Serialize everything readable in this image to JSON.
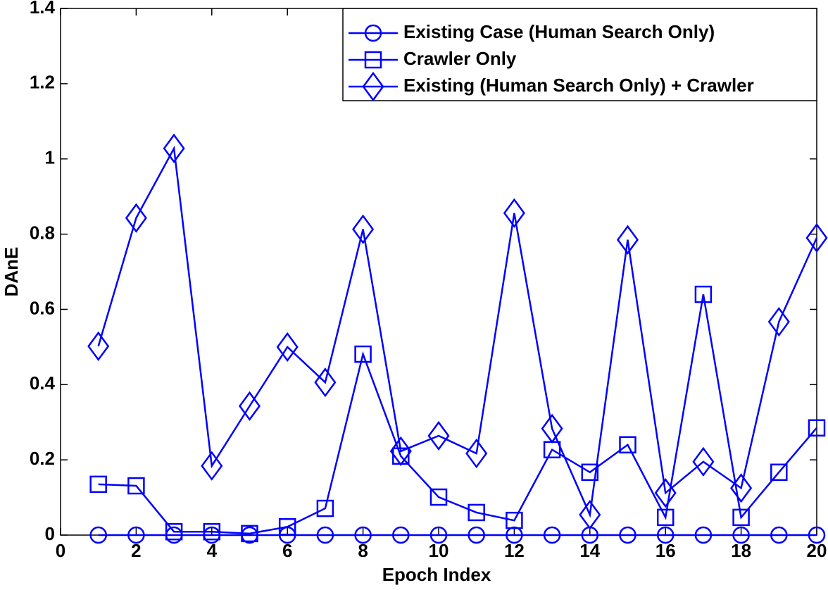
{
  "chart_data": {
    "type": "line",
    "x_label": "Epoch Index",
    "y_label": "DAnE",
    "x": [
      1,
      2,
      3,
      4,
      5,
      6,
      7,
      8,
      9,
      10,
      11,
      12,
      13,
      14,
      15,
      16,
      17,
      18,
      19,
      20
    ],
    "series": [
      {
        "name": "Existing Case (Human Search Only)",
        "color": "#0000ff",
        "marker": "circle",
        "values": [
          0,
          0,
          0,
          0,
          0,
          0,
          0,
          0,
          0,
          0,
          0,
          0,
          0,
          0,
          0,
          0,
          0,
          0,
          0,
          0
        ]
      },
      {
        "name": "Crawler Only",
        "color": "#0000ff",
        "marker": "square",
        "values": [
          0.135,
          0.131,
          0.009,
          0.009,
          0.004,
          0.022,
          0.071,
          0.481,
          0.21,
          0.101,
          0.06,
          0.039,
          0.227,
          0.167,
          0.24,
          0.047,
          0.64,
          0.047,
          0.167,
          0.285
        ]
      },
      {
        "name": "Existing (Human Search Only) + Crawler",
        "color": "#0000ff",
        "marker": "diamond",
        "values": [
          0.502,
          0.843,
          1.028,
          0.184,
          0.343,
          0.5,
          0.406,
          0.813,
          0.223,
          0.264,
          0.217,
          0.856,
          0.283,
          0.054,
          0.785,
          0.112,
          0.195,
          0.125,
          0.567,
          0.79
        ]
      }
    ],
    "xlim": [
      0,
      20
    ],
    "xticks": [
      0,
      2,
      4,
      6,
      8,
      10,
      12,
      14,
      16,
      18,
      20
    ],
    "ylim": [
      0,
      1.4
    ],
    "yticks": [
      0,
      0.2,
      0.4,
      0.6,
      0.8,
      1,
      1.2,
      1.4
    ],
    "legend": "upper right"
  }
}
